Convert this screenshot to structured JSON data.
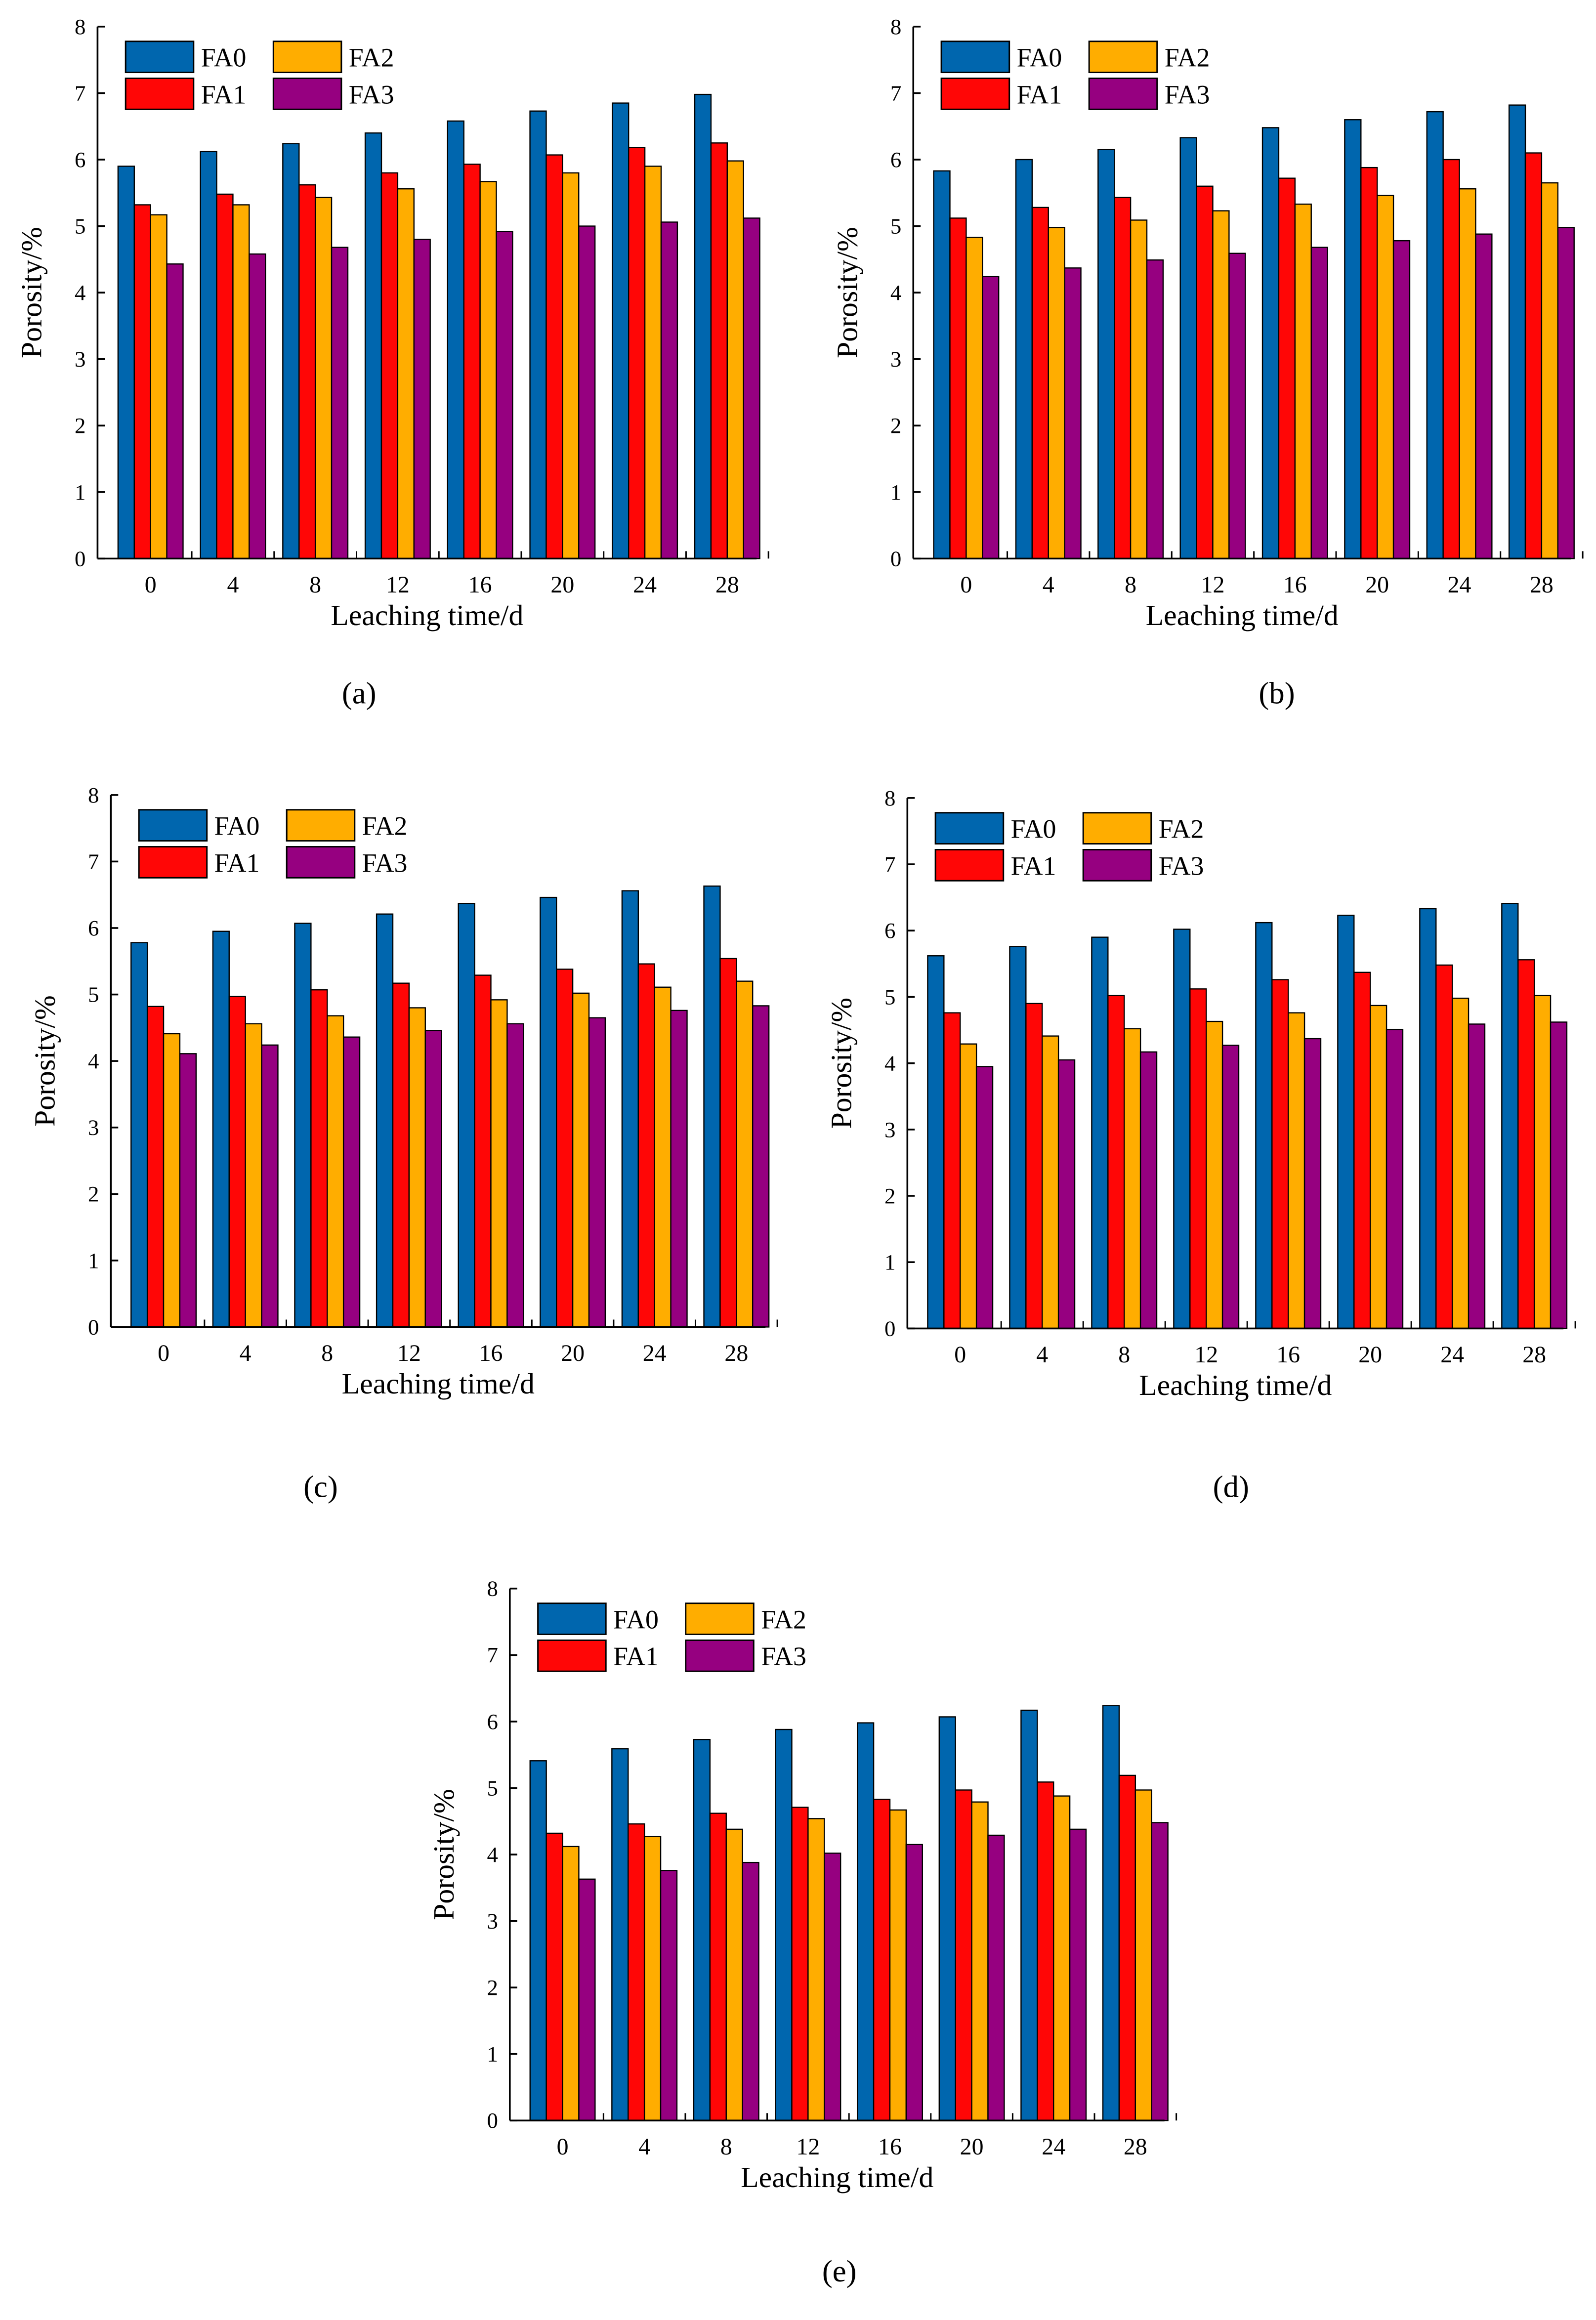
{
  "colors": {
    "FA0": "#0066ae",
    "FA1": "#ff0606",
    "FA2": "#ffad00",
    "FA3": "#960080"
  },
  "chart_data": [
    {
      "panel": "(a)",
      "type": "bar",
      "categories": [
        "0",
        "4",
        "8",
        "12",
        "16",
        "20",
        "24",
        "28"
      ],
      "xlabel": "Leaching time/d",
      "ylabel": "Porosity/%",
      "ylim": [
        0,
        8
      ],
      "yticks": [
        "0",
        "1",
        "2",
        "3",
        "4",
        "5",
        "6",
        "7",
        "8"
      ],
      "legend": "top-left",
      "series": [
        {
          "name": "FA0",
          "values": [
            5.9,
            6.12,
            6.24,
            6.4,
            6.58,
            6.73,
            6.85,
            6.98
          ]
        },
        {
          "name": "FA1",
          "values": [
            5.32,
            5.48,
            5.62,
            5.8,
            5.93,
            6.07,
            6.18,
            6.25
          ]
        },
        {
          "name": "FA2",
          "values": [
            5.17,
            5.32,
            5.43,
            5.56,
            5.67,
            5.8,
            5.9,
            5.98
          ]
        },
        {
          "name": "FA3",
          "values": [
            4.43,
            4.58,
            4.68,
            4.8,
            4.92,
            5.0,
            5.06,
            5.12
          ]
        }
      ]
    },
    {
      "panel": "(b)",
      "type": "bar",
      "categories": [
        "0",
        "4",
        "8",
        "12",
        "16",
        "20",
        "24",
        "28"
      ],
      "xlabel": "Leaching time/d",
      "ylabel": "Porosity/%",
      "ylim": [
        0,
        8
      ],
      "yticks": [
        "0",
        "1",
        "2",
        "3",
        "4",
        "5",
        "6",
        "7",
        "8"
      ],
      "legend": "top-left",
      "series": [
        {
          "name": "FA0",
          "values": [
            5.83,
            6.0,
            6.15,
            6.33,
            6.48,
            6.6,
            6.72,
            6.82
          ]
        },
        {
          "name": "FA1",
          "values": [
            5.12,
            5.28,
            5.43,
            5.6,
            5.72,
            5.88,
            6.0,
            6.1
          ]
        },
        {
          "name": "FA2",
          "values": [
            4.83,
            4.98,
            5.09,
            5.23,
            5.33,
            5.46,
            5.56,
            5.65
          ]
        },
        {
          "name": "FA3",
          "values": [
            4.24,
            4.37,
            4.49,
            4.59,
            4.68,
            4.78,
            4.88,
            4.98
          ]
        }
      ]
    },
    {
      "panel": "(c)",
      "type": "bar",
      "categories": [
        "0",
        "4",
        "8",
        "12",
        "16",
        "20",
        "24",
        "28"
      ],
      "xlabel": "Leaching time/d",
      "ylabel": "Porosity/%",
      "ylim": [
        0,
        8
      ],
      "yticks": [
        "0",
        "1",
        "2",
        "3",
        "4",
        "5",
        "6",
        "7",
        "8"
      ],
      "legend": "top-left",
      "series": [
        {
          "name": "FA0",
          "values": [
            5.78,
            5.95,
            6.07,
            6.21,
            6.37,
            6.46,
            6.56,
            6.63
          ]
        },
        {
          "name": "FA1",
          "values": [
            4.82,
            4.97,
            5.07,
            5.17,
            5.29,
            5.38,
            5.46,
            5.54
          ]
        },
        {
          "name": "FA2",
          "values": [
            4.41,
            4.56,
            4.68,
            4.8,
            4.92,
            5.02,
            5.11,
            5.2
          ]
        },
        {
          "name": "FA3",
          "values": [
            4.11,
            4.24,
            4.36,
            4.46,
            4.56,
            4.65,
            4.76,
            4.83
          ]
        }
      ]
    },
    {
      "panel": "(d)",
      "type": "bar",
      "categories": [
        "0",
        "4",
        "8",
        "12",
        "16",
        "20",
        "24",
        "28"
      ],
      "xlabel": "Leaching time/d",
      "ylabel": "Porosity/%",
      "ylim": [
        0,
        8
      ],
      "yticks": [
        "0",
        "1",
        "2",
        "3",
        "4",
        "5",
        "6",
        "7",
        "8"
      ],
      "legend": "top-left",
      "series": [
        {
          "name": "FA0",
          "values": [
            5.62,
            5.76,
            5.9,
            6.02,
            6.12,
            6.23,
            6.33,
            6.41
          ]
        },
        {
          "name": "FA1",
          "values": [
            4.76,
            4.9,
            5.02,
            5.12,
            5.26,
            5.37,
            5.48,
            5.56
          ]
        },
        {
          "name": "FA2",
          "values": [
            4.29,
            4.41,
            4.52,
            4.63,
            4.76,
            4.87,
            4.98,
            5.02
          ]
        },
        {
          "name": "FA3",
          "values": [
            3.95,
            4.05,
            4.17,
            4.27,
            4.37,
            4.51,
            4.59,
            4.62
          ]
        }
      ]
    },
    {
      "panel": "(e)",
      "type": "bar",
      "categories": [
        "0",
        "4",
        "8",
        "12",
        "16",
        "20",
        "24",
        "28"
      ],
      "xlabel": "Leaching time/d",
      "ylabel": "Porosity/%",
      "ylim": [
        0,
        8
      ],
      "yticks": [
        "0",
        "1",
        "2",
        "3",
        "4",
        "5",
        "6",
        "7",
        "8"
      ],
      "legend": "top-left",
      "series": [
        {
          "name": "FA0",
          "values": [
            5.41,
            5.59,
            5.73,
            5.88,
            5.98,
            6.07,
            6.17,
            6.24
          ]
        },
        {
          "name": "FA1",
          "values": [
            4.32,
            4.46,
            4.62,
            4.71,
            4.83,
            4.97,
            5.09,
            5.19
          ]
        },
        {
          "name": "FA2",
          "values": [
            4.12,
            4.27,
            4.38,
            4.54,
            4.67,
            4.79,
            4.88,
            4.97
          ]
        },
        {
          "name": "FA3",
          "values": [
            3.63,
            3.76,
            3.88,
            4.02,
            4.15,
            4.29,
            4.38,
            4.48
          ]
        }
      ]
    }
  ]
}
